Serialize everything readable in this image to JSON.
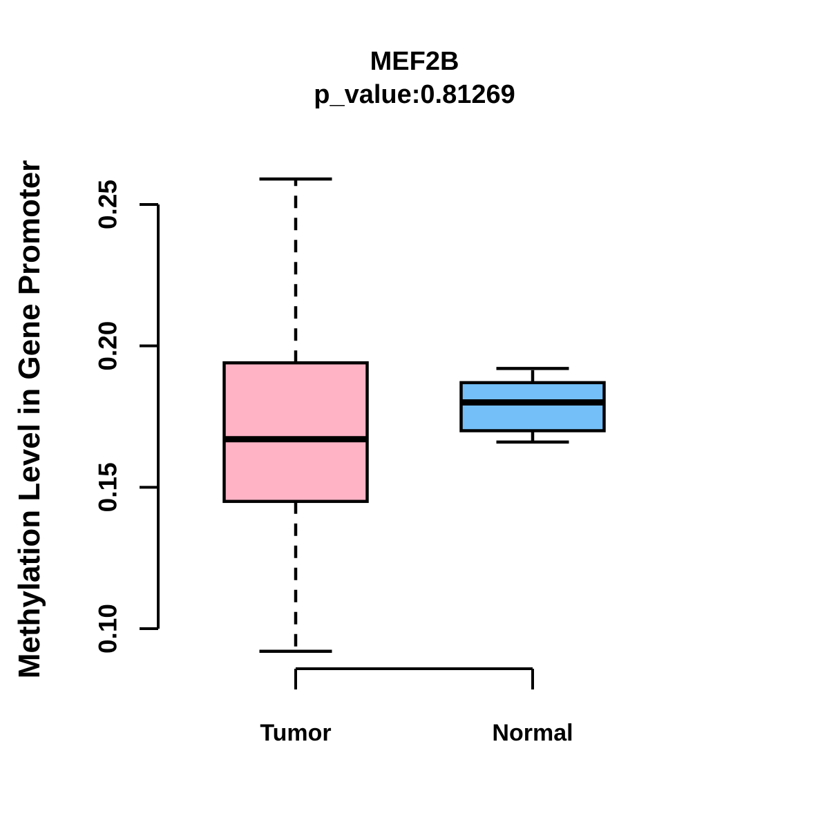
{
  "chart_data": {
    "type": "boxplot",
    "title": "MEF2B",
    "subtitle": "p_value:0.81269",
    "p_value": 0.81269,
    "ylabel": "Methylation Level in Gene Promoter",
    "xlabel": "",
    "categories": [
      "Tumor",
      "Normal"
    ],
    "y_ticks": [
      0.1,
      0.15,
      0.2,
      0.25
    ],
    "y_tick_labels": [
      "0.10",
      "0.15",
      "0.20",
      "0.25"
    ],
    "y_axis_range": [
      0.1,
      0.25
    ],
    "ylim": [
      0.092,
      0.26
    ],
    "grid": false,
    "legend": "none",
    "whisker_line_style": "dashed",
    "axis_color": "#000000",
    "box_border_color": "#000000",
    "median_color": "#000000",
    "series": [
      {
        "name": "Tumor",
        "color": "#FFB3C5",
        "lower_whisker": 0.092,
        "q1": 0.145,
        "median": 0.167,
        "q3": 0.194,
        "upper_whisker": 0.259
      },
      {
        "name": "Normal",
        "color": "#74BFF7",
        "lower_whisker": 0.166,
        "q1": 0.17,
        "median": 0.18,
        "q3": 0.187,
        "upper_whisker": 0.192
      }
    ]
  }
}
